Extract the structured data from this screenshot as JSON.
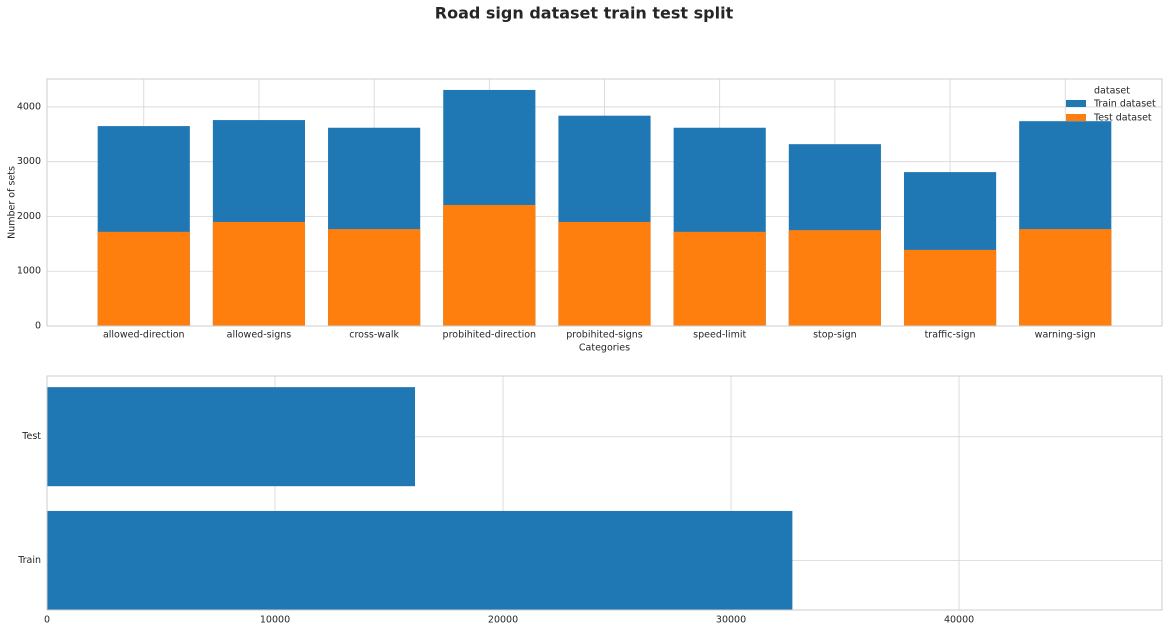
{
  "title": "Road sign dataset train test split",
  "chart_data": [
    {
      "type": "bar",
      "xlabel": "Categories",
      "ylabel": "Number of sets",
      "categories": [
        "allowed-direction",
        "allowed-signs",
        "cross-walk",
        "probihited-direction",
        "probihited-signs",
        "speed-limit",
        "stop-sign",
        "traffic-sign",
        "warning-sign"
      ],
      "series": [
        {
          "name": "Train dataset",
          "color": "#1f77b4",
          "values": [
            3650,
            3760,
            3620,
            4310,
            3840,
            3620,
            3320,
            2810,
            3740
          ]
        },
        {
          "name": "Test dataset",
          "color": "#ff7f0e",
          "values": [
            1720,
            1900,
            1770,
            2210,
            1900,
            1720,
            1750,
            1390,
            1770
          ]
        }
      ],
      "ylim": [
        0,
        4510
      ],
      "yticks": [
        0,
        1000,
        2000,
        3000,
        4000
      ],
      "grid": true,
      "legend_title": "dataset",
      "legend": "upper right"
    },
    {
      "type": "barh",
      "categories": [
        "Train",
        "Test"
      ],
      "values": [
        32690,
        16140
      ],
      "color": "#1f77b4",
      "xlim": [
        0,
        48900
      ],
      "xticks": [
        0,
        10000,
        20000,
        30000,
        40000
      ],
      "grid": true
    }
  ]
}
